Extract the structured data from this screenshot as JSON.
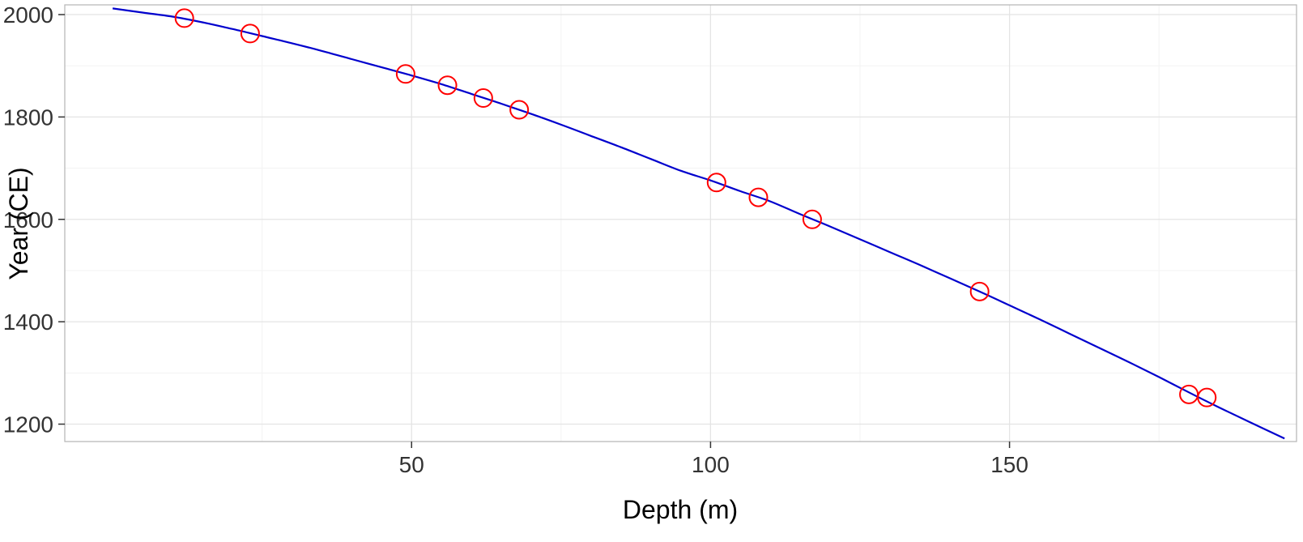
{
  "chart_data": {
    "type": "line+scatter",
    "title": "",
    "xlabel": "Depth (m)",
    "ylabel": "Year (CE)",
    "xlim": [
      -8,
      198
    ],
    "ylim": [
      1166,
      2019
    ],
    "x_ticks": [
      50,
      100,
      150
    ],
    "y_ticks": [
      1200,
      1400,
      1600,
      1800,
      2000
    ],
    "x_minor_ticks": [
      25,
      75,
      125,
      175
    ],
    "y_minor_ticks": [
      1300,
      1500,
      1700,
      1900
    ],
    "grid": true,
    "legend": "none",
    "colors": {
      "line": "#0000CD",
      "point": "#FF0000",
      "grid_major": "#e4e4e4",
      "grid_minor": "#f3f3f3",
      "panel_border": "#b5b5b5",
      "tick": "#333333"
    },
    "line": {
      "x": [
        0,
        5,
        10,
        15,
        20,
        25,
        30,
        35,
        40,
        45,
        50,
        55,
        60,
        65,
        70,
        75,
        80,
        85,
        90,
        95,
        100,
        105,
        110,
        115,
        120,
        125,
        130,
        135,
        140,
        145,
        150,
        155,
        160,
        165,
        170,
        175,
        180,
        185,
        190,
        196
      ],
      "y": [
        2012,
        2004,
        1996,
        1985,
        1972,
        1958,
        1944,
        1929,
        1913,
        1897,
        1881,
        1864,
        1845,
        1826,
        1806,
        1785,
        1763,
        1741,
        1718,
        1695,
        1676,
        1655,
        1635,
        1610,
        1586,
        1561,
        1536,
        1511,
        1485,
        1459,
        1432,
        1405,
        1377,
        1349,
        1321,
        1292,
        1262,
        1233,
        1205,
        1172
      ]
    },
    "points": {
      "x": [
        12,
        23,
        49,
        56,
        62,
        68,
        101,
        108,
        117,
        145,
        180,
        183
      ],
      "y": [
        1993,
        1963,
        1884,
        1862,
        1837,
        1814,
        1672,
        1643,
        1600,
        1459,
        1258,
        1252
      ]
    }
  }
}
